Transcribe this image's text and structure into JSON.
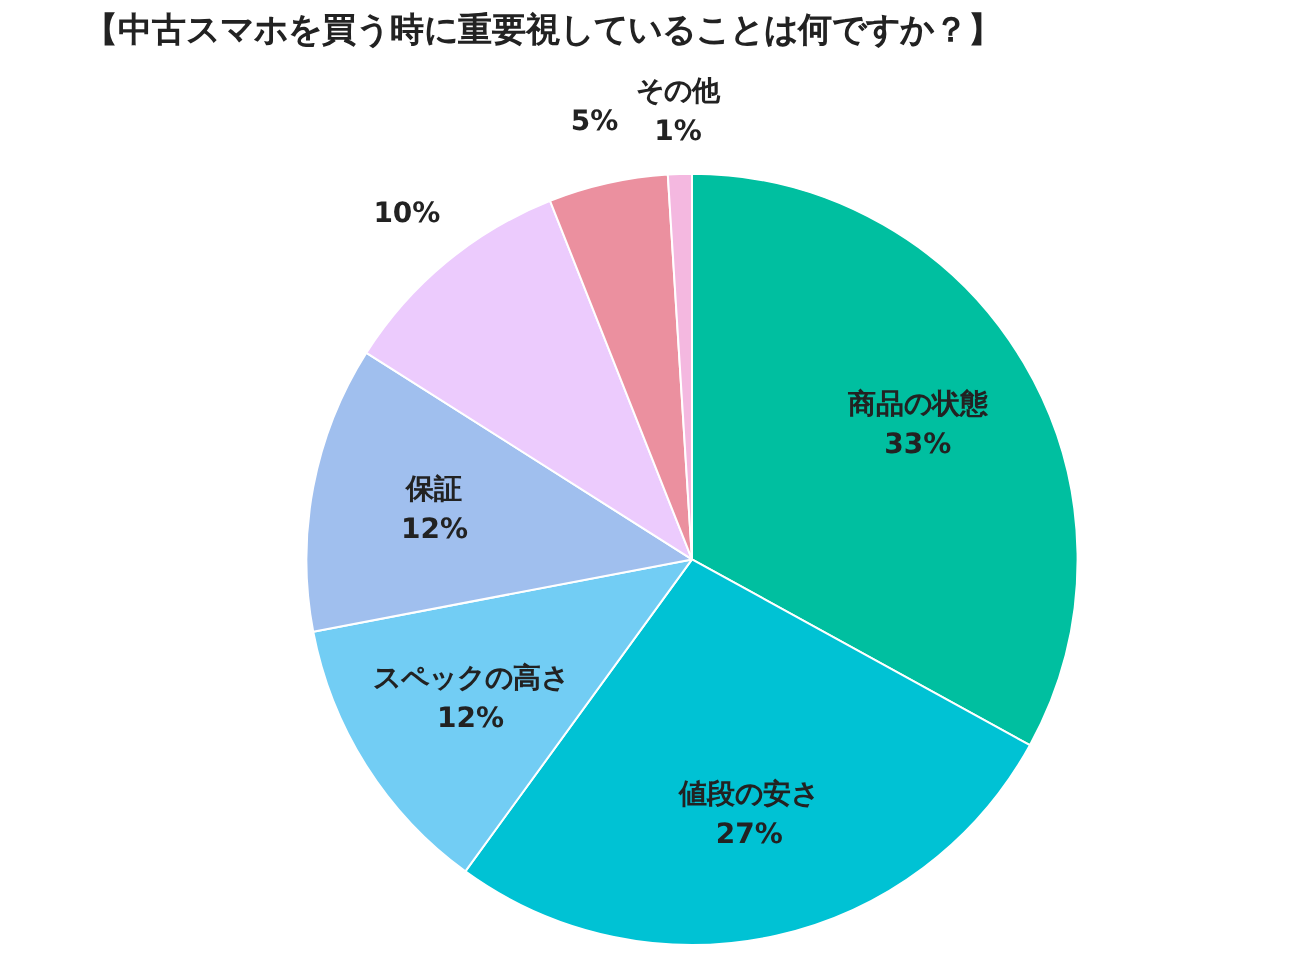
{
  "chart_data": {
    "type": "pie",
    "title": "【中古スマホを買う時に重要視していることは何ですか？】",
    "categories": [
      "商品の状態",
      "値段の安さ",
      "スペックの高さ",
      "保証",
      null,
      null,
      "その他"
    ],
    "values": [
      33,
      27,
      12,
      12,
      10,
      5,
      1
    ],
    "value_labels": [
      "33%",
      "27%",
      "12%",
      "12%",
      "10%",
      "5%",
      "1%"
    ],
    "colors": [
      "#00bfa0",
      "#00c2d4",
      "#72cdf4",
      "#a0bfee",
      "#eccbfd",
      "#eb909f",
      "#f4b8e0"
    ],
    "legend": false
  }
}
